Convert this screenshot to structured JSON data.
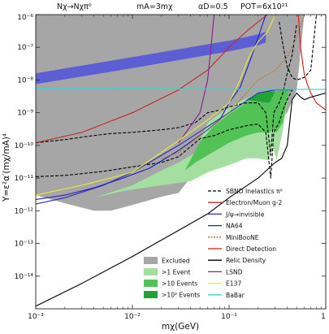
{
  "chart_data": {
    "type": "line",
    "header": [
      "Nχ→Nχπ⁰",
      "mA=3mχ",
      "αD=0.5",
      "POT=6x10²¹"
    ],
    "xlabel": "mχ(GeV)",
    "ylabel": "Y=ε²α′(mχ/mA)⁴",
    "x_scale": "log",
    "y_scale": "log",
    "xlim": [
      0.001,
      1
    ],
    "ylim": [
      1e-15,
      1e-06
    ],
    "x_ticks": [
      {
        "value": 0.001,
        "label": "10⁻³"
      },
      {
        "value": 0.01,
        "label": "10⁻²"
      },
      {
        "value": 0.1,
        "label": "10⁻¹"
      },
      {
        "value": 1,
        "label": "1"
      }
    ],
    "y_ticks": [
      {
        "value": 1e-06,
        "label": "10⁻⁶"
      },
      {
        "value": 1e-07,
        "label": "10⁻⁷"
      },
      {
        "value": 1e-08,
        "label": "10⁻⁸"
      },
      {
        "value": 1e-09,
        "label": "10⁻⁹"
      },
      {
        "value": 1e-10,
        "label": "10⁻¹⁰"
      },
      {
        "value": 1e-11,
        "label": "10⁻¹¹"
      },
      {
        "value": 1e-12,
        "label": "10⁻¹²"
      },
      {
        "value": 1e-13,
        "label": "10⁻¹³"
      },
      {
        "value": 1e-14,
        "label": "10⁻¹⁴"
      }
    ],
    "excluded_region": {
      "name": "Excluded",
      "color": "#a6a6a6",
      "boundary": [
        [
          0.001,
          3e-12
        ],
        [
          0.002,
          1.7e-12
        ],
        [
          0.004,
          1e-12
        ],
        [
          0.006,
          1e-12
        ],
        [
          0.01,
          1.5e-12
        ],
        [
          0.02,
          2.7e-12
        ],
        [
          0.03,
          3.5e-12
        ],
        [
          0.045,
          1.6e-11
        ],
        [
          0.06,
          3.5e-11
        ],
        [
          0.1,
          1e-10
        ],
        [
          0.2,
          2.5e-10
        ],
        [
          0.3,
          4.5e-10
        ],
        [
          0.4,
          1e-09
        ],
        [
          0.5,
          5e-09
        ],
        [
          0.6,
          1e-06
        ]
      ]
    },
    "event_bands": [
      {
        "name": ">1 Event",
        "color": "#a4dea0",
        "upper": [
          [
            0.004,
            2.5e-12
          ],
          [
            0.01,
            6e-12
          ],
          [
            0.02,
            1.7e-11
          ],
          [
            0.03,
            3e-11
          ],
          [
            0.045,
            6e-11
          ],
          [
            0.06,
            5e-10
          ],
          [
            0.09,
            1.2e-09
          ],
          [
            0.14,
            2.5e-09
          ],
          [
            0.2,
            4e-09
          ],
          [
            0.26,
            4.5e-09
          ],
          [
            0.3,
            4.5e-09
          ],
          [
            0.36,
            5e-09
          ],
          [
            0.42,
            5e-09
          ]
        ],
        "lower": [
          [
            0.004,
            2.5e-12
          ],
          [
            0.008,
            4e-12
          ],
          [
            0.02,
            6e-12
          ],
          [
            0.04,
            8e-12
          ],
          [
            0.06,
            1.5e-11
          ],
          [
            0.1,
            2.5e-11
          ],
          [
            0.15,
            4e-11
          ],
          [
            0.2,
            4e-11
          ],
          [
            0.26,
            3.5e-11
          ],
          [
            0.28,
            1e-10
          ],
          [
            0.31,
            3.5e-11
          ],
          [
            0.36,
            3e-10
          ],
          [
            0.42,
            5e-09
          ]
        ]
      },
      {
        "name": ">10 Events",
        "color": "#52c257",
        "upper": [
          [
            0.035,
            1.7e-11
          ],
          [
            0.05,
            1.3e-10
          ],
          [
            0.07,
            4e-10
          ],
          [
            0.1,
            9e-10
          ],
          [
            0.15,
            2e-09
          ],
          [
            0.2,
            4e-09
          ],
          [
            0.3,
            4.5e-09
          ],
          [
            0.37,
            5e-09
          ],
          [
            0.42,
            5e-09
          ]
        ],
        "lower": [
          [
            0.035,
            1.7e-11
          ],
          [
            0.045,
            3e-11
          ],
          [
            0.06,
            5e-11
          ],
          [
            0.1,
            1.2e-10
          ],
          [
            0.15,
            2e-10
          ],
          [
            0.2,
            2.5e-10
          ],
          [
            0.26,
            2.5e-10
          ],
          [
            0.28,
            3e-10
          ],
          [
            0.31,
            2.5e-10
          ],
          [
            0.36,
            5e-10
          ],
          [
            0.42,
            5e-09
          ]
        ]
      },
      {
        "name": ">10² Events",
        "color": "#22a237",
        "upper": [
          [
            0.15,
            2.5e-09
          ],
          [
            0.2,
            4e-09
          ],
          [
            0.26,
            4.5e-09
          ],
          [
            0.3,
            4.5e-09
          ]
        ],
        "lower": [
          [
            0.15,
            2.5e-09
          ],
          [
            0.2,
            2.2e-09
          ],
          [
            0.26,
            2e-09
          ],
          [
            0.3,
            4.5e-09
          ]
        ]
      }
    ],
    "bands": [
      {
        "name": "g-2 band",
        "color": "#5a5ad6",
        "upper": [
          [
            0.001,
            1.6e-08
          ],
          [
            0.01,
            5e-08
          ],
          [
            0.1,
            1.6e-07
          ],
          [
            0.2,
            2.5e-07
          ],
          [
            0.24,
            3e-07
          ]
        ],
        "lower": [
          [
            0.001,
            7.5e-09
          ],
          [
            0.01,
            2.3e-08
          ],
          [
            0.1,
            7.5e-08
          ],
          [
            0.2,
            1.15e-07
          ],
          [
            0.24,
            1.4e-07
          ]
        ]
      }
    ],
    "series": [
      {
        "name": "SBND Inelastics π⁰",
        "color": "#000000",
        "dash": "4,2",
        "points": [
          [
            0.001,
            1.2e-10
          ],
          [
            0.002,
            1.5e-10
          ],
          [
            0.004,
            2e-10
          ],
          [
            0.006,
            2.3e-10
          ],
          [
            0.01,
            2.5e-10
          ],
          [
            0.02,
            3e-10
          ],
          [
            0.03,
            3.5e-10
          ],
          [
            0.045,
            5e-10
          ],
          [
            0.06,
            1e-09
          ],
          [
            0.08,
            1.2e-09
          ],
          [
            0.1,
            1.5e-09
          ],
          [
            0.15,
            2e-09
          ],
          [
            0.2,
            2e-09
          ],
          [
            0.24,
            1e-09
          ],
          [
            0.27,
            5e-11
          ],
          [
            0.29,
            1e-09
          ],
          [
            0.33,
            2e-09
          ],
          [
            0.36,
            4e-09
          ],
          [
            0.4,
            1.6e-08
          ],
          [
            0.45,
            6e-08
          ],
          [
            0.5,
            5e-07
          ]
        ]
      },
      {
        "name": "SBND Inelastics π⁰",
        "color": "#000000",
        "dash": "4,2",
        "points": [
          [
            0.001,
            1.1e-11
          ],
          [
            0.002,
            1.2e-11
          ],
          [
            0.005,
            1.6e-11
          ],
          [
            0.01,
            2.2e-11
          ],
          [
            0.02,
            3e-11
          ],
          [
            0.03,
            4.5e-11
          ],
          [
            0.05,
            1.6e-10
          ],
          [
            0.07,
            2e-10
          ],
          [
            0.1,
            3e-10
          ],
          [
            0.15,
            4e-10
          ],
          [
            0.2,
            4.5e-10
          ],
          [
            0.24,
            2.5e-10
          ],
          [
            0.27,
            1e-11
          ],
          [
            0.29,
            2.5e-10
          ],
          [
            0.33,
            5e-10
          ],
          [
            0.36,
            1.2e-09
          ],
          [
            0.4,
            2.5e-09
          ],
          [
            0.45,
            5e-09
          ]
        ]
      },
      {
        "name": "SBND Inelastics π⁰",
        "color": "#000000",
        "dash": "4,2",
        "points": [
          [
            0.33,
            6e-07
          ],
          [
            0.36,
            1.2e-07
          ],
          [
            0.4,
            2.5e-08
          ],
          [
            0.45,
            1.2e-08
          ],
          [
            0.5,
            1e-08
          ],
          [
            0.6,
            1.2e-08
          ],
          [
            0.7,
            2e-08
          ],
          [
            0.8,
            1e-06
          ]
        ]
      },
      {
        "name": "Electron/Muon g-2",
        "color": "#c0282a",
        "dash": "",
        "points": [
          [
            0.001,
            1.2e-10
          ],
          [
            0.003,
            2.5e-10
          ],
          [
            0.01,
            1e-09
          ],
          [
            0.03,
            5e-09
          ],
          [
            0.06,
            2e-08
          ],
          [
            0.1,
            1e-07
          ],
          [
            0.15,
            3e-07
          ],
          [
            0.2,
            6e-07
          ],
          [
            0.25,
            1e-06
          ]
        ]
      },
      {
        "name": "J/ψ→invisible",
        "color": "#2d2db8",
        "dash": "",
        "points": [
          [
            0.001,
            1.6e-12
          ],
          [
            0.002,
            2.5e-12
          ],
          [
            0.005,
            6e-12
          ],
          [
            0.01,
            1.5e-11
          ],
          [
            0.03,
            1e-10
          ],
          [
            0.1,
            1e-09
          ],
          [
            0.2,
            4e-09
          ],
          [
            0.3,
            5e-09
          ],
          [
            0.45,
            5e-09
          ]
        ]
      },
      {
        "name": "NA64",
        "color": "#1f1fc8",
        "dash": "",
        "points": [
          [
            0.001,
            2.2e-12
          ],
          [
            0.002,
            3e-12
          ],
          [
            0.004,
            5e-12
          ],
          [
            0.008,
            1e-11
          ],
          [
            0.015,
            2e-11
          ],
          [
            0.03,
            7e-11
          ],
          [
            0.06,
            3e-10
          ],
          [
            0.08,
            6e-10
          ],
          [
            0.1,
            2e-09
          ],
          [
            0.13,
            6e-09
          ],
          [
            0.17,
            5e-08
          ],
          [
            0.2,
            2e-07
          ],
          [
            0.24,
            1e-06
          ]
        ]
      },
      {
        "name": "MiniBooNE",
        "color": "#b8732a",
        "dash": "2,1.5",
        "points": [
          [
            0.02,
            4e-11
          ],
          [
            0.03,
            6e-11
          ],
          [
            0.05,
            2e-10
          ],
          [
            0.08,
            6e-10
          ],
          [
            0.1,
            1e-09
          ],
          [
            0.15,
            4e-09
          ],
          [
            0.2,
            1e-08
          ],
          [
            0.3,
            2e-08
          ],
          [
            0.4,
            5e-08
          ],
          [
            0.5,
            2e-07
          ],
          [
            0.6,
            1e-06
          ]
        ]
      },
      {
        "name": "Direct Detection",
        "color": "#e01010",
        "dash": "",
        "points": [
          [
            0.52,
            1e-06
          ],
          [
            0.55,
            1e-07
          ],
          [
            0.58,
            3e-08
          ],
          [
            0.6,
            1.5e-08
          ],
          [
            0.65,
            7e-09
          ],
          [
            0.7,
            4e-09
          ],
          [
            0.8,
            2e-09
          ],
          [
            1,
            1.2e-09
          ]
        ]
      },
      {
        "name": "Relic Density",
        "color": "#000000",
        "dash": "",
        "points": [
          [
            0.001,
            1.2e-15
          ],
          [
            0.003,
            6e-15
          ],
          [
            0.01,
            4e-14
          ],
          [
            0.03,
            2.5e-13
          ],
          [
            0.06,
            8e-13
          ],
          [
            0.1,
            2.5e-12
          ],
          [
            0.2,
            1e-11
          ],
          [
            0.3,
            3e-11
          ],
          [
            0.35,
            4e-11
          ],
          [
            0.4,
            1e-10
          ],
          [
            0.45,
            2.5e-09
          ],
          [
            0.5,
            4e-09
          ],
          [
            0.55,
            3e-09
          ],
          [
            0.6,
            2.5e-09
          ],
          [
            0.7,
            3e-09
          ],
          [
            1,
            4e-09
          ]
        ]
      },
      {
        "name": "LSND",
        "color": "#8c1a8c",
        "dash": "",
        "points": [
          [
            0.03,
            1.2e-10
          ],
          [
            0.05,
            1e-09
          ],
          [
            0.06,
            1e-08
          ],
          [
            0.065,
            1e-07
          ],
          [
            0.07,
            1e-06
          ]
        ]
      },
      {
        "name": "E137",
        "color": "#eaea3a",
        "dash": "",
        "points": [
          [
            0.001,
            3e-12
          ],
          [
            0.003,
            6e-12
          ],
          [
            0.01,
            1.5e-11
          ],
          [
            0.03,
            1.4e-10
          ],
          [
            0.06,
            6e-10
          ],
          [
            0.1,
            2e-09
          ],
          [
            0.13,
            1e-08
          ],
          [
            0.16,
            5e-08
          ],
          [
            0.2,
            1.5e-07
          ],
          [
            0.25,
            3e-07
          ],
          [
            0.3,
            1e-06
          ]
        ]
      },
      {
        "name": "BaBar",
        "color": "#33d6d0",
        "dash": "",
        "points": [
          [
            0.001,
            5.6e-09
          ],
          [
            0.01,
            5.4e-09
          ],
          [
            0.1,
            5.2e-09
          ],
          [
            0.5,
            5.2e-09
          ],
          [
            1,
            5.2e-09
          ]
        ]
      }
    ],
    "legend_lines": [
      {
        "label": "SBND Inelastics π⁰",
        "color": "#000000",
        "dash": "4,2"
      },
      {
        "label": "Electron/Muon g-2",
        "color": "#c0282a",
        "dash": ""
      },
      {
        "label": "J/ψ→invisible",
        "color": "#2d2db8",
        "dash": ""
      },
      {
        "label": "NA64",
        "color": "#1f1fc8",
        "dash": ""
      },
      {
        "label": "MiniBooNE",
        "color": "#b8732a",
        "dash": "2,1.5"
      },
      {
        "label": "Direct Detection",
        "color": "#e01010",
        "dash": ""
      },
      {
        "label": "Relic Density",
        "color": "#000000",
        "dash": ""
      },
      {
        "label": "LSND",
        "color": "#8c1a8c",
        "dash": ""
      },
      {
        "label": "E137",
        "color": "#eaea3a",
        "dash": ""
      },
      {
        "label": "BaBar",
        "color": "#33d6d0",
        "dash": ""
      }
    ],
    "legend_fills": [
      {
        "label": "Excluded",
        "color": "#a6a6a6"
      },
      {
        "label": ">1 Event",
        "color": "#a4dea0"
      },
      {
        "label": ">10 Events",
        "color": "#52c257"
      },
      {
        "label": ">10² Events",
        "color": "#22a237"
      }
    ]
  }
}
